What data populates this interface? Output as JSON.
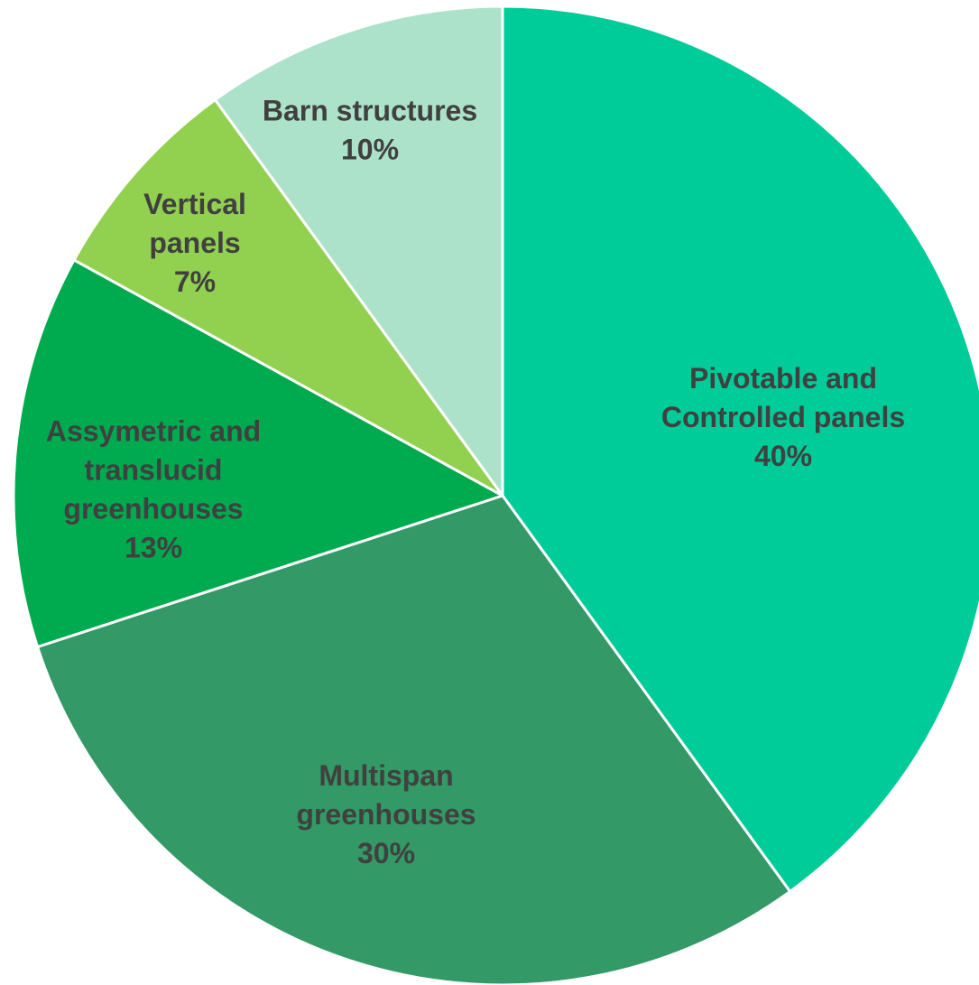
{
  "chart_data": {
    "type": "pie",
    "title": "",
    "start_angle_deg": 0,
    "direction": "clockwise",
    "legend": "none",
    "slices": [
      {
        "label": "Pivotable and Controlled panels",
        "label_lines": [
          "Pivotable and",
          "Controlled panels"
        ],
        "value": 40,
        "value_label": "40%",
        "color": "#00CC99"
      },
      {
        "label": "Multispan greenhouses",
        "label_lines": [
          "Multispan",
          "greenhouses"
        ],
        "value": 30,
        "value_label": "30%",
        "color": "#339966"
      },
      {
        "label": "Assymetric and translucid greenhouses",
        "label_lines": [
          "Assymetric and",
          "translucid",
          "greenhouses"
        ],
        "value": 13,
        "value_label": "13%",
        "color": "#00AA4F"
      },
      {
        "label": "Vertical panels",
        "label_lines": [
          "Vertical",
          "panels"
        ],
        "value": 7,
        "value_label": "7%",
        "color": "#92D050"
      },
      {
        "label": "Barn structures",
        "label_lines": [
          "Barn structures"
        ],
        "value": 10,
        "value_label": "10%",
        "color": "#ACE2CA"
      }
    ]
  }
}
